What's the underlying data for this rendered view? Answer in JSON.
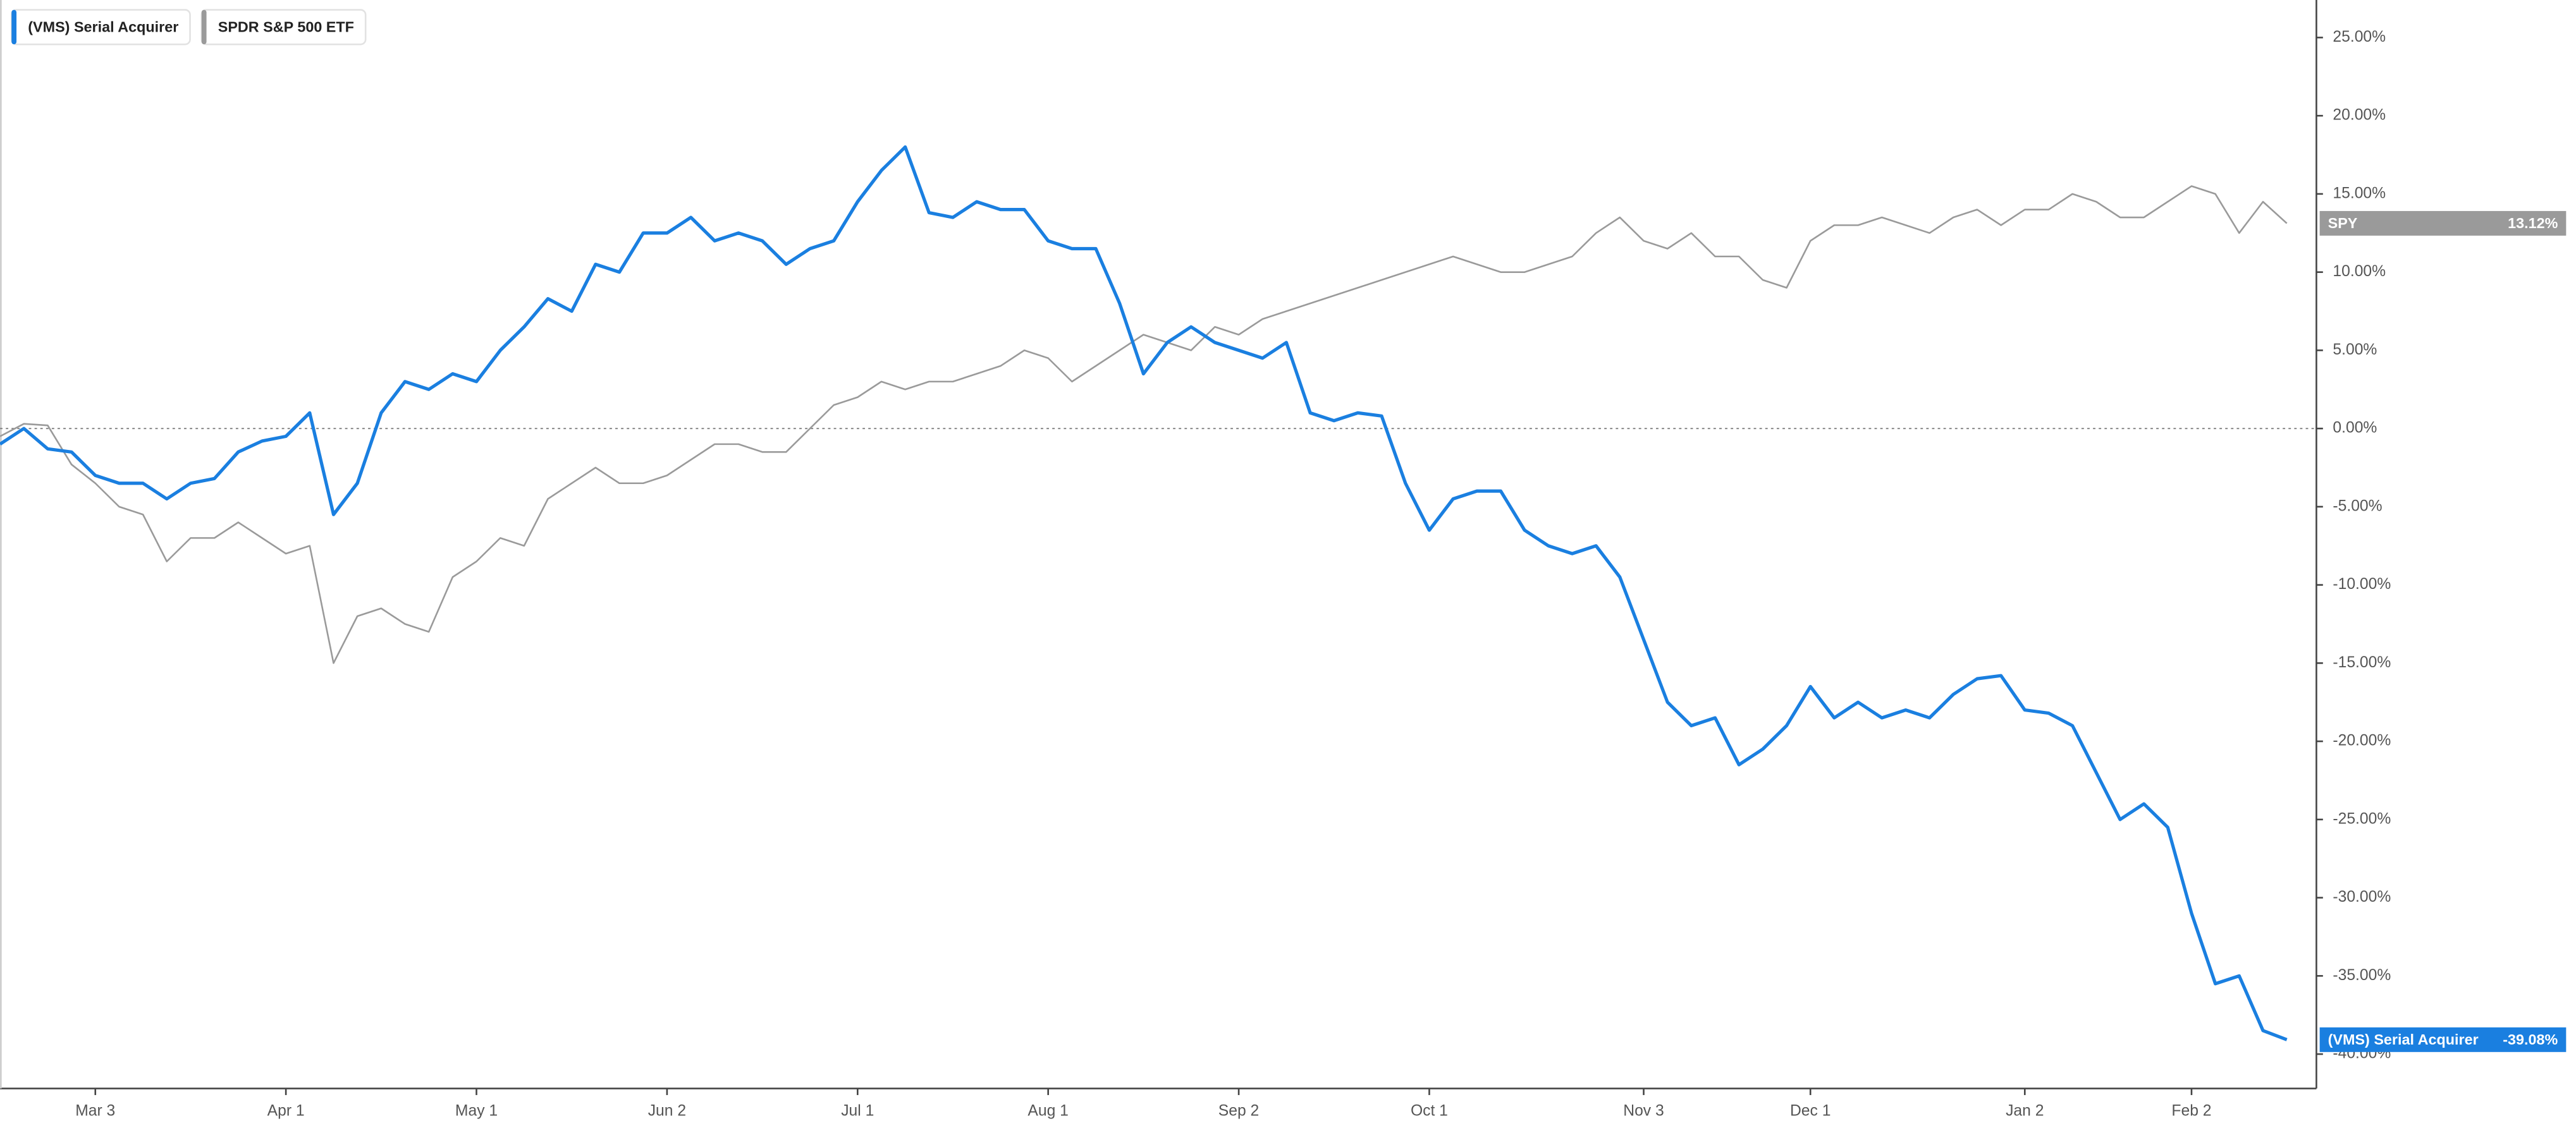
{
  "chart_data": {
    "type": "line",
    "categories": [
      null,
      null,
      null,
      null,
      "Mar 3",
      null,
      null,
      null,
      null,
      null,
      null,
      null,
      "Apr 1",
      null,
      null,
      null,
      null,
      null,
      null,
      null,
      "May 1",
      null,
      null,
      null,
      null,
      null,
      null,
      null,
      "Jun 2",
      null,
      null,
      null,
      null,
      null,
      null,
      null,
      "Jul 1",
      null,
      null,
      null,
      null,
      null,
      null,
      null,
      "Aug 1",
      null,
      null,
      null,
      null,
      null,
      null,
      null,
      "Sep 2",
      null,
      null,
      null,
      null,
      null,
      null,
      null,
      "Oct 1",
      null,
      null,
      null,
      null,
      null,
      null,
      null,
      null,
      "Nov 3",
      null,
      null,
      null,
      null,
      null,
      null,
      "Dec 1",
      null,
      null,
      null,
      null,
      null,
      null,
      null,
      null,
      "Jan 2",
      null,
      null,
      null,
      null,
      null,
      null,
      "Feb 2",
      null,
      null,
      null,
      null
    ],
    "series": [
      {
        "name": "(VMS) Serial Acquirer",
        "color": "#1a7fe0",
        "values": [
          -1,
          0,
          -1.3,
          -1.5,
          -3,
          -3.5,
          -3.5,
          -4.5,
          -3.5,
          -3.2,
          -1.5,
          -0.8,
          -0.5,
          1,
          -5.5,
          -3.5,
          1,
          3,
          2.5,
          3.5,
          3,
          5,
          6.5,
          8.3,
          7.5,
          10.5,
          10,
          12.5,
          12.5,
          13.5,
          12,
          12.5,
          12,
          10.5,
          11.5,
          12,
          14.5,
          16.5,
          18,
          13.8,
          13.5,
          14.5,
          14,
          14,
          12,
          11.5,
          11.5,
          8,
          3.5,
          5.5,
          6.5,
          5.5,
          5,
          4.5,
          5.5,
          1,
          0.5,
          1,
          0.8,
          -3.5,
          -6.5,
          -4.5,
          -4,
          -4,
          -6.5,
          -7.5,
          -8,
          -7.5,
          -9.5,
          -13.5,
          -17.5,
          -19,
          -18.5,
          -21.5,
          -20.5,
          -19,
          -16.5,
          -18.5,
          -17.5,
          -18.5,
          -18,
          -18.5,
          -17,
          -16,
          -15.8,
          -18,
          -18.2,
          -19,
          -22,
          -25,
          -24,
          -25.5,
          -31,
          -35.5,
          -35,
          -38.5,
          -39.08
        ],
        "value_labels": [
          null,
          null,
          null,
          null,
          null,
          null,
          null,
          null,
          null,
          null,
          null,
          null,
          null,
          null,
          null,
          null,
          null,
          null,
          null,
          null,
          null,
          null,
          null,
          null,
          null,
          null,
          null,
          null,
          null,
          null,
          null,
          null,
          null,
          null,
          null,
          null,
          null,
          null,
          null,
          null,
          null,
          null,
          null,
          null,
          null,
          null,
          null,
          null,
          null,
          null,
          null,
          null,
          null,
          null,
          null,
          null,
          null,
          null,
          null,
          null,
          null,
          null,
          null,
          null,
          null,
          null,
          null,
          null,
          null,
          null,
          null,
          null,
          null,
          null,
          null,
          null,
          null,
          null,
          null,
          null,
          null,
          null,
          null,
          null,
          null,
          null,
          null,
          null,
          null,
          null,
          null,
          null,
          null,
          null,
          null,
          null,
          "-39.08%"
        ]
      },
      {
        "name": "SPDR S&P 500 ETF",
        "ticker": "SPY",
        "color": "#9a9a9a",
        "values": [
          -0.5,
          0.3,
          0.2,
          -2.3,
          -3.5,
          -5,
          -5.5,
          -8.5,
          -7,
          -7,
          -6,
          -7,
          -8,
          -7.5,
          -15,
          -12,
          -11.5,
          -12.5,
          -13,
          -9.5,
          -8.5,
          -7,
          -7.5,
          -4.5,
          -3.5,
          -2.5,
          -3.5,
          -3.5,
          -3,
          -2,
          -1,
          -1,
          -1.5,
          -1.5,
          0,
          1.5,
          2,
          3,
          2.5,
          3,
          3,
          3.5,
          4,
          5,
          4.5,
          3,
          4,
          5,
          6,
          5.5,
          5,
          6.5,
          6,
          7,
          7.5,
          8,
          8.5,
          9,
          9.5,
          10,
          10.5,
          11,
          10.5,
          10,
          10,
          10.5,
          11,
          12.5,
          13.5,
          12,
          11.5,
          12.5,
          11,
          11,
          9.5,
          9,
          12,
          13,
          13,
          13.5,
          13,
          12.5,
          13.5,
          14,
          13,
          14,
          14,
          15,
          14.5,
          13.5,
          13.5,
          14.5,
          15.5,
          15,
          12.5,
          14.5,
          13.12
        ],
        "value_labels": [
          null,
          null,
          null,
          null,
          null,
          null,
          null,
          null,
          null,
          null,
          null,
          null,
          null,
          null,
          null,
          null,
          null,
          null,
          null,
          null,
          null,
          null,
          null,
          null,
          null,
          null,
          null,
          null,
          null,
          null,
          null,
          null,
          null,
          null,
          null,
          null,
          null,
          null,
          null,
          null,
          null,
          null,
          null,
          null,
          null,
          null,
          null,
          null,
          null,
          null,
          null,
          null,
          null,
          null,
          null,
          null,
          null,
          null,
          null,
          null,
          null,
          null,
          null,
          null,
          null,
          null,
          null,
          null,
          null,
          null,
          null,
          null,
          null,
          null,
          null,
          null,
          null,
          null,
          null,
          null,
          null,
          null,
          null,
          null,
          null,
          null,
          null,
          null,
          null,
          null,
          null,
          null,
          null,
          null,
          null,
          null,
          "13.12%"
        ]
      }
    ],
    "ylim": [
      -42.2,
      27.4
    ],
    "yticks": [
      {
        "value": 25,
        "label": "25.00%"
      },
      {
        "value": 20,
        "label": "20.00%"
      },
      {
        "value": 15,
        "label": "15.00%"
      },
      {
        "value": 10,
        "label": "10.00%"
      },
      {
        "value": 5,
        "label": "5.00%"
      },
      {
        "value": 0,
        "label": "0.00%"
      },
      {
        "value": -5,
        "label": "-5.00%"
      },
      {
        "value": -10,
        "label": "-10.00%"
      },
      {
        "value": -15,
        "label": "-15.00%"
      },
      {
        "value": -20,
        "label": "-20.00%"
      },
      {
        "value": -25,
        "label": "-25.00%"
      },
      {
        "value": -30,
        "label": "-30.00%"
      },
      {
        "value": -35,
        "label": "-35.00%"
      },
      {
        "value": -40,
        "label": "-40.00%"
      }
    ],
    "zero_line": true,
    "legend": "top-left"
  }
}
